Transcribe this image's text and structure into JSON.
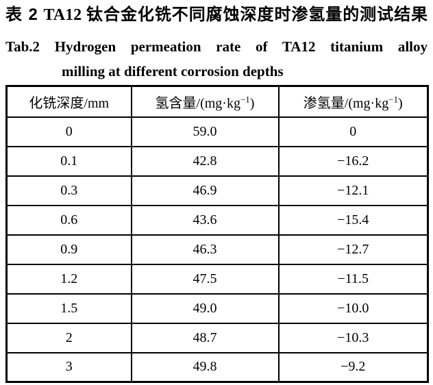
{
  "colors": {
    "background": "#ffffff",
    "text": "#000000",
    "table_border": "#000000"
  },
  "caption": {
    "cn_label": "表 2",
    "cn_text": "TA12 钛合金化铣不同腐蚀深度时渗氢量的测试结果",
    "en_label": "Tab.2",
    "en_line1": "Hydrogen permeation rate of TA12 titanium alloy",
    "en_line2": "milling at different corrosion depths"
  },
  "table": {
    "headers": [
      {
        "prefix": "化铣深度/mm",
        "sup": "",
        "suffix": ""
      },
      {
        "prefix": "氢含量/(mg·kg",
        "sup": "−1",
        "suffix": ")"
      },
      {
        "prefix": "渗氢量/(mg·kg",
        "sup": "−1",
        "suffix": ")"
      }
    ],
    "rows": [
      [
        "0",
        "59.0",
        "0"
      ],
      [
        "0.1",
        "42.8",
        "−16.2"
      ],
      [
        "0.3",
        "46.9",
        "−12.1"
      ],
      [
        "0.6",
        "43.6",
        "−15.4"
      ],
      [
        "0.9",
        "46.3",
        "−12.7"
      ],
      [
        "1.2",
        "47.5",
        "−11.5"
      ],
      [
        "1.5",
        "49.0",
        "−10.0"
      ],
      [
        "2",
        "48.7",
        "−10.3"
      ],
      [
        "3",
        "49.8",
        "−9.2"
      ]
    ]
  }
}
